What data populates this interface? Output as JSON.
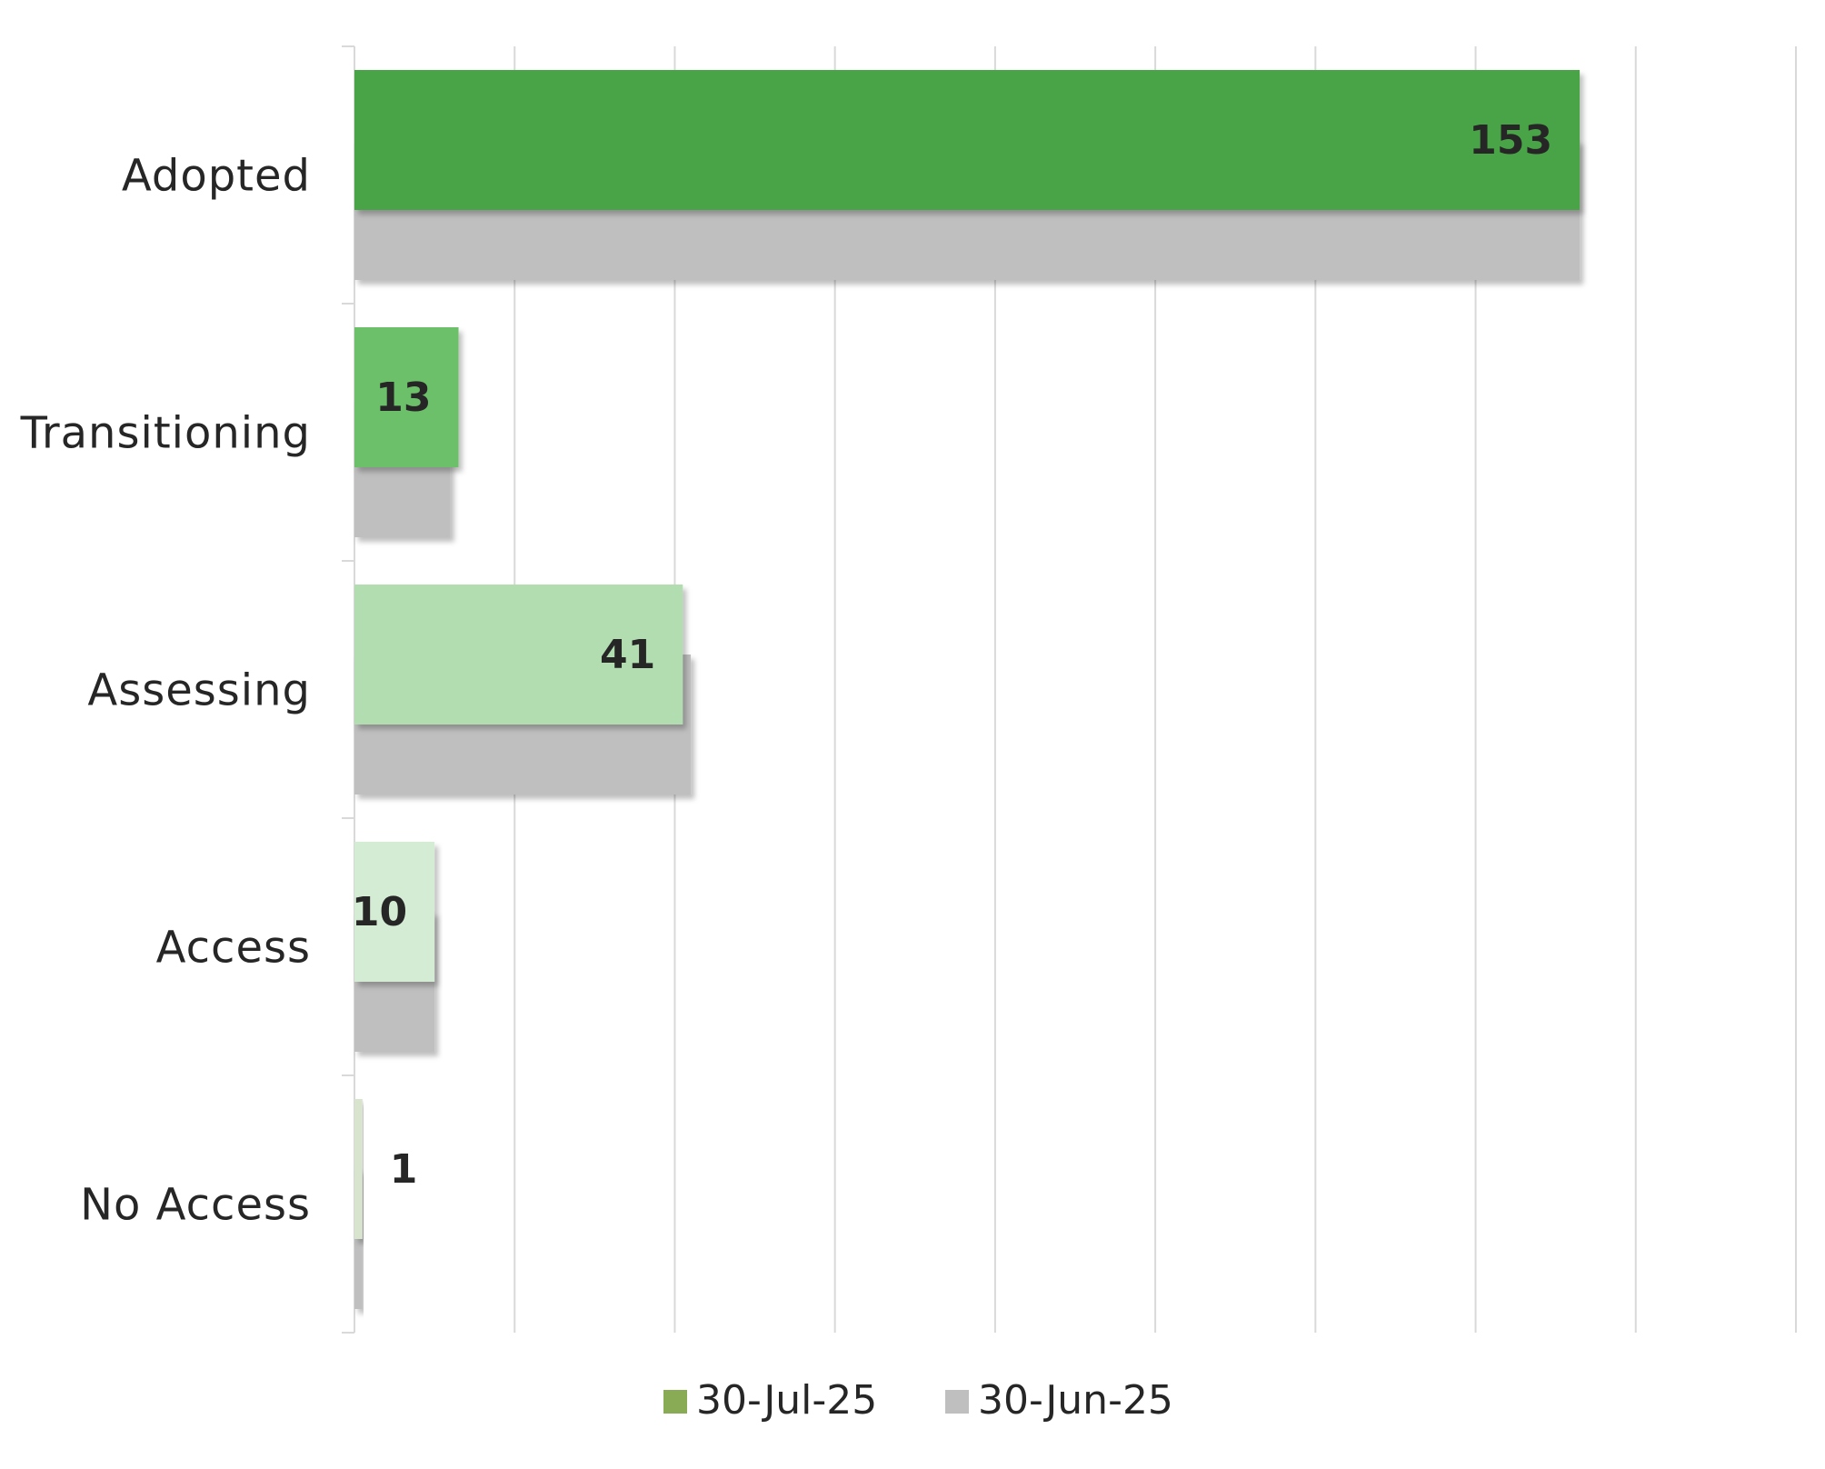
{
  "chart_data": {
    "type": "bar",
    "orientation": "horizontal",
    "categories": [
      "Adopted",
      "Transitioning",
      "Assessing",
      "Access",
      "No Access"
    ],
    "series": [
      {
        "name": "30-Jul-25",
        "values": [
          153,
          13,
          41,
          10,
          1
        ],
        "bar_colors": [
          "#4aa447",
          "#6cc06a",
          "#b2ddb0",
          "#d4ebd4",
          "#d9e4cf"
        ],
        "legend_color": "#8aab55",
        "data_labels": true
      },
      {
        "name": "30-Jun-25",
        "values": [
          153,
          12,
          42,
          10,
          1
        ],
        "color": "#bfbfbf",
        "data_labels": false
      }
    ],
    "xlim": [
      0,
      180
    ],
    "x_gridlines": [
      0,
      20,
      40,
      60,
      80,
      100,
      120,
      140,
      160,
      180
    ],
    "x_tick_labels_shown": false,
    "grid": true,
    "legend_position": "bottom",
    "title": "",
    "xlabel": "",
    "ylabel": ""
  }
}
